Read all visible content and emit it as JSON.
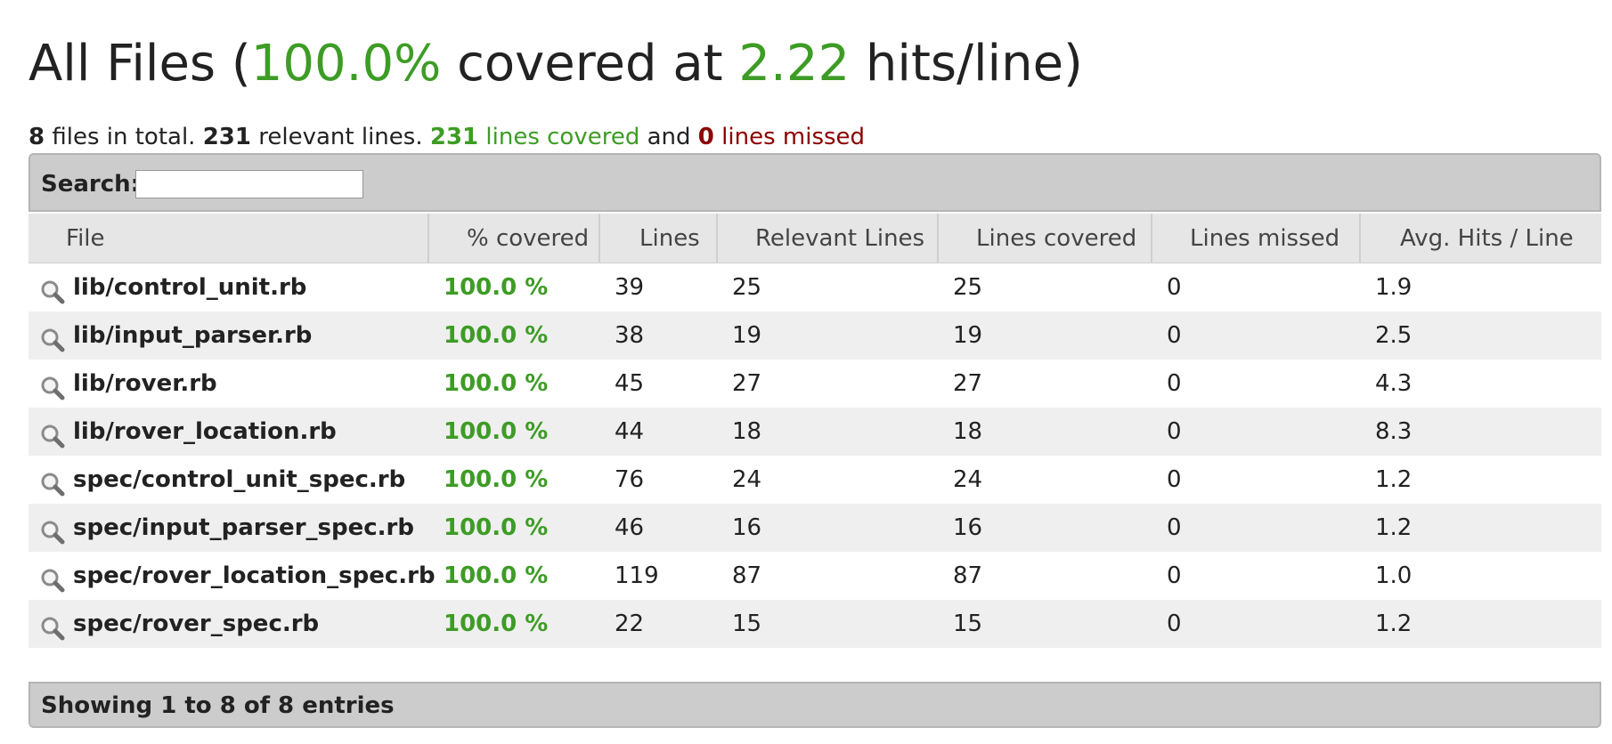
{
  "title": {
    "prefix": "All Files (",
    "percent": "100.0%",
    "middle": " covered at ",
    "hits": "2.22",
    "suffix": " hits/line)"
  },
  "summary": {
    "files_count": "8",
    "files_text": " files in total. ",
    "relevant_count": "231",
    "relevant_text": " relevant lines. ",
    "covered_count": "231",
    "covered_text": " lines covered",
    "and_text": " and ",
    "missed_count": "0",
    "missed_text": " lines missed"
  },
  "search": {
    "label": "Search:",
    "value": "",
    "placeholder": ""
  },
  "table": {
    "headers": [
      "File",
      "% covered",
      "Lines",
      "Relevant Lines",
      "Lines covered",
      "Lines missed",
      "Avg. Hits / Line"
    ],
    "rows": [
      {
        "file": "lib/control_unit.rb",
        "covered": "100.0 %",
        "lines": "39",
        "relevant": "25",
        "lines_covered": "25",
        "missed": "0",
        "avg": "1.9"
      },
      {
        "file": "lib/input_parser.rb",
        "covered": "100.0 %",
        "lines": "38",
        "relevant": "19",
        "lines_covered": "19",
        "missed": "0",
        "avg": "2.5"
      },
      {
        "file": "lib/rover.rb",
        "covered": "100.0 %",
        "lines": "45",
        "relevant": "27",
        "lines_covered": "27",
        "missed": "0",
        "avg": "4.3"
      },
      {
        "file": "lib/rover_location.rb",
        "covered": "100.0 %",
        "lines": "44",
        "relevant": "18",
        "lines_covered": "18",
        "missed": "0",
        "avg": "8.3"
      },
      {
        "file": "spec/control_unit_spec.rb",
        "covered": "100.0 %",
        "lines": "76",
        "relevant": "24",
        "lines_covered": "24",
        "missed": "0",
        "avg": "1.2"
      },
      {
        "file": "spec/input_parser_spec.rb",
        "covered": "100.0 %",
        "lines": "46",
        "relevant": "16",
        "lines_covered": "16",
        "missed": "0",
        "avg": "1.2"
      },
      {
        "file": "spec/rover_location_spec.rb",
        "covered": "100.0 %",
        "lines": "119",
        "relevant": "87",
        "lines_covered": "87",
        "missed": "0",
        "avg": "1.0"
      },
      {
        "file": "spec/rover_spec.rb",
        "covered": "100.0 %",
        "lines": "22",
        "relevant": "15",
        "lines_covered": "15",
        "missed": "0",
        "avg": "1.2"
      }
    ]
  },
  "footer": {
    "info": "Showing 1 to 8 of 8 entries"
  },
  "icons": {
    "file_icon": "magnifier-icon"
  },
  "colors": {
    "covered": "#3d9c25",
    "missed": "#8b0000"
  }
}
